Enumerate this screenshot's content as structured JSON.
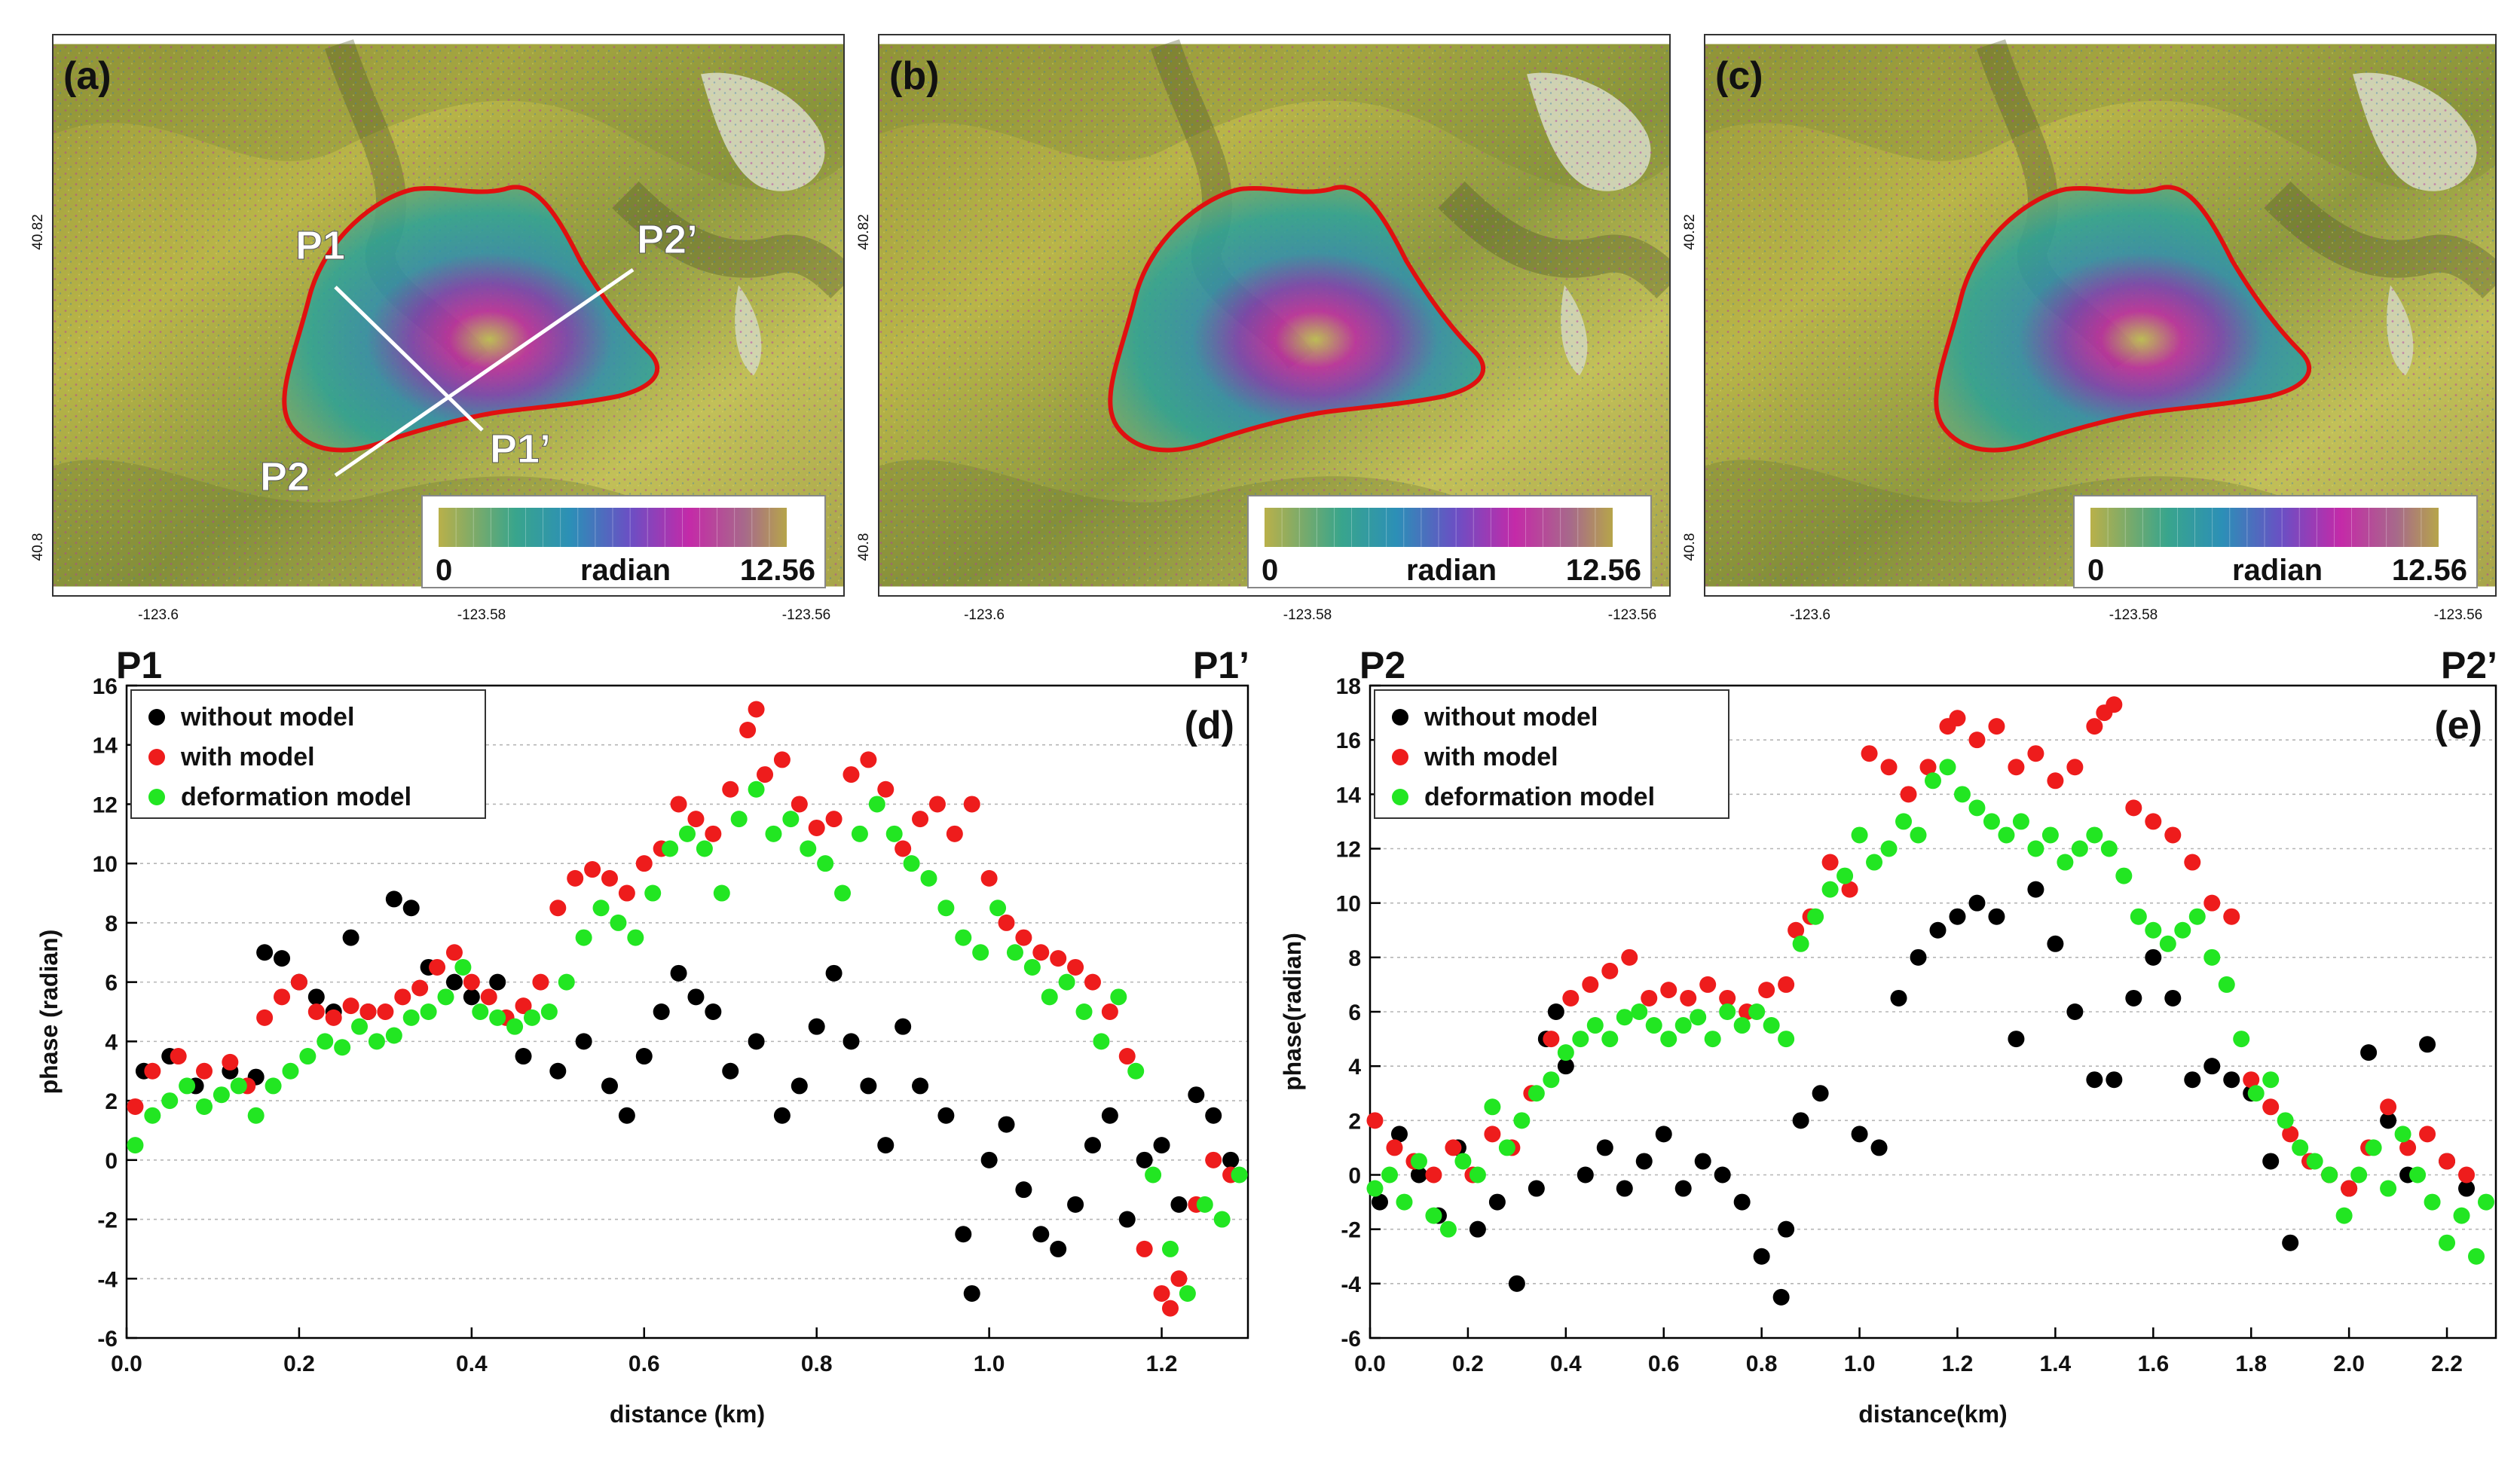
{
  "colors": {
    "black_series": "#000000",
    "red_series": "#ee1c1c",
    "green_series": "#22e622",
    "outline": "#e01010",
    "profile_line": "#ffffff"
  },
  "maps": [
    {
      "panel_label": "(a)",
      "lat_ticks": [
        "40.82",
        "40.8"
      ],
      "lon_ticks": [
        "-123.6",
        "-123.58",
        "-123.56"
      ],
      "colorbar": {
        "min": "0",
        "unit": "radian",
        "max": "12.56"
      },
      "profile_labels": [
        "P1",
        "P1’",
        "P2",
        "P2’"
      ]
    },
    {
      "panel_label": "(b)",
      "lat_ticks": [
        "40.82",
        "40.8"
      ],
      "lon_ticks": [
        "-123.6",
        "-123.58",
        "-123.56"
      ],
      "colorbar": {
        "min": "0",
        "unit": "radian",
        "max": "12.56"
      }
    },
    {
      "panel_label": "(c)",
      "lat_ticks": [
        "40.82",
        "40.8"
      ],
      "lon_ticks": [
        "-123.6",
        "-123.58",
        "-123.56"
      ],
      "colorbar": {
        "min": "0",
        "unit": "radian",
        "max": "12.56"
      }
    }
  ],
  "chart_data": [
    {
      "type": "scatter",
      "panel_label": "(d)",
      "profile_start": "P1",
      "profile_end": "P1’",
      "xlabel": "distance (km)",
      "ylabel": "phase (radian)",
      "xlim": [
        0,
        1.3
      ],
      "ylim": [
        -6,
        16
      ],
      "xticks": [
        "0.0",
        "0.2",
        "0.4",
        "0.6",
        "0.8",
        "1.0",
        "1.2"
      ],
      "yticks": [
        "-6",
        "-4",
        "-2",
        "0",
        "2",
        "4",
        "6",
        "8",
        "10",
        "12",
        "14",
        "16"
      ],
      "grid": "horizontal dotted",
      "legend_position": "top-left",
      "series": [
        {
          "name": "without model",
          "color": "#000000",
          "x": [
            0.02,
            0.05,
            0.08,
            0.12,
            0.15,
            0.16,
            0.18,
            0.2,
            0.22,
            0.24,
            0.26,
            0.28,
            0.31,
            0.33,
            0.35,
            0.38,
            0.4,
            0.43,
            0.46,
            0.5,
            0.53,
            0.56,
            0.58,
            0.6,
            0.62,
            0.64,
            0.66,
            0.68,
            0.7,
            0.73,
            0.76,
            0.78,
            0.8,
            0.82,
            0.84,
            0.86,
            0.88,
            0.9,
            0.92,
            0.95,
            0.97,
            0.98,
            1.0,
            1.02,
            1.04,
            1.06,
            1.08,
            1.1,
            1.12,
            1.14,
            1.16,
            1.18,
            1.2,
            1.22,
            1.24,
            1.26,
            1.28
          ],
          "y": [
            3.0,
            3.5,
            2.5,
            3.0,
            2.8,
            7.0,
            6.8,
            6.0,
            5.5,
            5.0,
            7.5,
            5.0,
            8.8,
            8.5,
            6.5,
            6.0,
            5.5,
            6.0,
            3.5,
            3.0,
            4.0,
            2.5,
            1.5,
            3.5,
            5.0,
            6.3,
            5.5,
            5.0,
            3.0,
            4.0,
            1.5,
            2.5,
            4.5,
            6.3,
            4.0,
            2.5,
            0.5,
            4.5,
            2.5,
            1.5,
            -2.5,
            -4.5,
            0.0,
            1.2,
            -1.0,
            -2.5,
            -3.0,
            -1.5,
            0.5,
            1.5,
            -2.0,
            0.0,
            0.5,
            -1.5,
            2.2,
            1.5,
            0.0
          ]
        },
        {
          "name": "with model",
          "color": "#ee1c1c",
          "x": [
            0.01,
            0.03,
            0.06,
            0.09,
            0.12,
            0.14,
            0.16,
            0.18,
            0.2,
            0.22,
            0.24,
            0.26,
            0.28,
            0.3,
            0.32,
            0.34,
            0.36,
            0.38,
            0.4,
            0.42,
            0.44,
            0.46,
            0.48,
            0.5,
            0.52,
            0.54,
            0.56,
            0.58,
            0.6,
            0.62,
            0.64,
            0.66,
            0.68,
            0.7,
            0.72,
            0.73,
            0.74,
            0.76,
            0.78,
            0.8,
            0.82,
            0.84,
            0.86,
            0.88,
            0.9,
            0.92,
            0.94,
            0.96,
            0.98,
            1.0,
            1.02,
            1.04,
            1.06,
            1.08,
            1.1,
            1.12,
            1.14,
            1.16,
            1.18,
            1.2,
            1.21,
            1.22,
            1.24,
            1.26,
            1.28
          ],
          "y": [
            1.8,
            3.0,
            3.5,
            3.0,
            3.3,
            2.5,
            4.8,
            5.5,
            6.0,
            5.0,
            4.8,
            5.2,
            5.0,
            5.0,
            5.5,
            5.8,
            6.5,
            7.0,
            6.0,
            5.5,
            4.8,
            5.2,
            6.0,
            8.5,
            9.5,
            9.8,
            9.5,
            9.0,
            10.0,
            10.5,
            12.0,
            11.5,
            11.0,
            12.5,
            14.5,
            15.2,
            13.0,
            13.5,
            12.0,
            11.2,
            11.5,
            13.0,
            13.5,
            12.5,
            10.5,
            11.5,
            12.0,
            11.0,
            12.0,
            9.5,
            8.0,
            7.5,
            7.0,
            6.8,
            6.5,
            6.0,
            5.0,
            3.5,
            -3.0,
            -4.5,
            -5.0,
            -4.0,
            -1.5,
            0.0,
            -0.5
          ]
        },
        {
          "name": "deformation model",
          "color": "#22e622",
          "x": [
            0.01,
            0.03,
            0.05,
            0.07,
            0.09,
            0.11,
            0.13,
            0.15,
            0.17,
            0.19,
            0.21,
            0.23,
            0.25,
            0.27,
            0.29,
            0.31,
            0.33,
            0.35,
            0.37,
            0.39,
            0.41,
            0.43,
            0.45,
            0.47,
            0.49,
            0.51,
            0.53,
            0.55,
            0.57,
            0.59,
            0.61,
            0.63,
            0.65,
            0.67,
            0.69,
            0.71,
            0.73,
            0.75,
            0.77,
            0.79,
            0.81,
            0.83,
            0.85,
            0.87,
            0.89,
            0.91,
            0.93,
            0.95,
            0.97,
            0.99,
            1.01,
            1.03,
            1.05,
            1.07,
            1.09,
            1.11,
            1.13,
            1.15,
            1.17,
            1.19,
            1.21,
            1.23,
            1.25,
            1.27,
            1.29
          ],
          "y": [
            0.5,
            1.5,
            2.0,
            2.5,
            1.8,
            2.2,
            2.5,
            1.5,
            2.5,
            3.0,
            3.5,
            4.0,
            3.8,
            4.5,
            4.0,
            4.2,
            4.8,
            5.0,
            5.5,
            6.5,
            5.0,
            4.8,
            4.5,
            4.8,
            5.0,
            6.0,
            7.5,
            8.5,
            8.0,
            7.5,
            9.0,
            10.5,
            11.0,
            10.5,
            9.0,
            11.5,
            12.5,
            11.0,
            11.5,
            10.5,
            10.0,
            9.0,
            11.0,
            12.0,
            11.0,
            10.0,
            9.5,
            8.5,
            7.5,
            7.0,
            8.5,
            7.0,
            6.5,
            5.5,
            6.0,
            5.0,
            4.0,
            5.5,
            3.0,
            -0.5,
            -3.0,
            -4.5,
            -1.5,
            -2.0,
            -0.5
          ]
        }
      ]
    },
    {
      "type": "scatter",
      "panel_label": "(e)",
      "profile_start": "P2",
      "profile_end": "P2’",
      "xlabel": "distance(km)",
      "ylabel": "phase(radian)",
      "xlim": [
        0,
        2.3
      ],
      "ylim": [
        -6,
        18
      ],
      "xticks": [
        "0.0",
        "0.2",
        "0.4",
        "0.6",
        "0.8",
        "1.0",
        "1.2",
        "1.4",
        "1.6",
        "1.8",
        "2.0",
        "2.2"
      ],
      "yticks": [
        "-6",
        "-4",
        "-2",
        "0",
        "2",
        "4",
        "6",
        "8",
        "10",
        "12",
        "14",
        "16",
        "18"
      ],
      "grid": "horizontal dotted",
      "legend_position": "top-left",
      "series": [
        {
          "name": "without model",
          "color": "#000000",
          "x": [
            0.02,
            0.06,
            0.1,
            0.14,
            0.18,
            0.22,
            0.26,
            0.3,
            0.34,
            0.36,
            0.38,
            0.4,
            0.44,
            0.48,
            0.52,
            0.56,
            0.6,
            0.64,
            0.68,
            0.72,
            0.76,
            0.8,
            0.84,
            0.85,
            0.88,
            0.92,
            1.0,
            1.04,
            1.08,
            1.12,
            1.16,
            1.2,
            1.24,
            1.28,
            1.32,
            1.36,
            1.4,
            1.44,
            1.48,
            1.52,
            1.56,
            1.6,
            1.64,
            1.68,
            1.72,
            1.76,
            1.8,
            1.84,
            1.88,
            1.92,
            1.96,
            2.0,
            2.04,
            2.08,
            2.12,
            2.16,
            2.2,
            2.24
          ],
          "y": [
            -1.0,
            1.5,
            0.0,
            -1.5,
            1.0,
            -2.0,
            -1.0,
            -4.0,
            -0.5,
            5.0,
            6.0,
            4.0,
            0.0,
            1.0,
            -0.5,
            0.5,
            1.5,
            -0.5,
            0.5,
            0.0,
            -1.0,
            -3.0,
            -4.5,
            -2.0,
            2.0,
            3.0,
            1.5,
            1.0,
            6.5,
            8.0,
            9.0,
            9.5,
            10.0,
            9.5,
            5.0,
            10.5,
            8.5,
            6.0,
            3.5,
            3.5,
            6.5,
            8.0,
            6.5,
            3.5,
            4.0,
            3.5,
            3.0,
            0.5,
            -2.5,
            0.5,
            0.0,
            -0.5,
            4.5,
            2.0,
            0.0,
            4.8,
            0.5,
            -0.5
          ]
        },
        {
          "name": "with model",
          "color": "#ee1c1c",
          "x": [
            0.01,
            0.05,
            0.09,
            0.13,
            0.17,
            0.21,
            0.25,
            0.29,
            0.33,
            0.37,
            0.41,
            0.45,
            0.49,
            0.53,
            0.57,
            0.61,
            0.65,
            0.69,
            0.73,
            0.77,
            0.81,
            0.85,
            0.87,
            0.9,
            0.94,
            0.98,
            1.02,
            1.06,
            1.1,
            1.14,
            1.18,
            1.2,
            1.24,
            1.28,
            1.32,
            1.36,
            1.4,
            1.44,
            1.48,
            1.5,
            1.52,
            1.56,
            1.6,
            1.64,
            1.68,
            1.72,
            1.76,
            1.8,
            1.84,
            1.88,
            1.92,
            1.96,
            2.0,
            2.04,
            2.08,
            2.12,
            2.16,
            2.2,
            2.24
          ],
          "y": [
            2.0,
            1.0,
            0.5,
            0.0,
            1.0,
            0.0,
            1.5,
            1.0,
            3.0,
            5.0,
            6.5,
            7.0,
            7.5,
            8.0,
            6.5,
            6.8,
            6.5,
            7.0,
            6.5,
            6.0,
            6.8,
            7.0,
            9.0,
            9.5,
            11.5,
            10.5,
            15.5,
            15.0,
            14.0,
            15.0,
            16.5,
            16.8,
            16.0,
            16.5,
            15.0,
            15.5,
            14.5,
            15.0,
            16.5,
            17.0,
            17.3,
            13.5,
            13.0,
            12.5,
            11.5,
            10.0,
            9.5,
            3.5,
            2.5,
            1.5,
            0.5,
            0.0,
            -0.5,
            1.0,
            2.5,
            1.0,
            1.5,
            0.5,
            0.0
          ]
        },
        {
          "name": "deformation model",
          "color": "#22e622",
          "x": [
            0.01,
            0.04,
            0.07,
            0.1,
            0.13,
            0.16,
            0.19,
            0.22,
            0.25,
            0.28,
            0.31,
            0.34,
            0.37,
            0.4,
            0.43,
            0.46,
            0.49,
            0.52,
            0.55,
            0.58,
            0.61,
            0.64,
            0.67,
            0.7,
            0.73,
            0.76,
            0.79,
            0.82,
            0.85,
            0.88,
            0.91,
            0.94,
            0.97,
            1.0,
            1.03,
            1.06,
            1.09,
            1.12,
            1.15,
            1.18,
            1.21,
            1.24,
            1.27,
            1.3,
            1.33,
            1.36,
            1.39,
            1.42,
            1.45,
            1.48,
            1.51,
            1.54,
            1.57,
            1.6,
            1.63,
            1.66,
            1.69,
            1.72,
            1.75,
            1.78,
            1.81,
            1.84,
            1.87,
            1.9,
            1.93,
            1.96,
            1.99,
            2.02,
            2.05,
            2.08,
            2.11,
            2.14,
            2.17,
            2.2,
            2.23,
            2.26,
            2.28
          ],
          "y": [
            -0.5,
            0.0,
            -1.0,
            0.5,
            -1.5,
            -2.0,
            0.5,
            0.0,
            2.5,
            1.0,
            2.0,
            3.0,
            3.5,
            4.5,
            5.0,
            5.5,
            5.0,
            5.8,
            6.0,
            5.5,
            5.0,
            5.5,
            5.8,
            5.0,
            6.0,
            5.5,
            6.0,
            5.5,
            5.0,
            8.5,
            9.5,
            10.5,
            11.0,
            12.5,
            11.5,
            12.0,
            13.0,
            12.5,
            14.5,
            15.0,
            14.0,
            13.5,
            13.0,
            12.5,
            13.0,
            12.0,
            12.5,
            11.5,
            12.0,
            12.5,
            12.0,
            11.0,
            9.5,
            9.0,
            8.5,
            9.0,
            9.5,
            8.0,
            7.0,
            5.0,
            3.0,
            3.5,
            2.0,
            1.0,
            0.5,
            0.0,
            -1.5,
            0.0,
            1.0,
            -0.5,
            1.5,
            0.0,
            -1.0,
            -2.5,
            -1.5,
            -3.0,
            -1.0
          ]
        }
      ]
    }
  ]
}
